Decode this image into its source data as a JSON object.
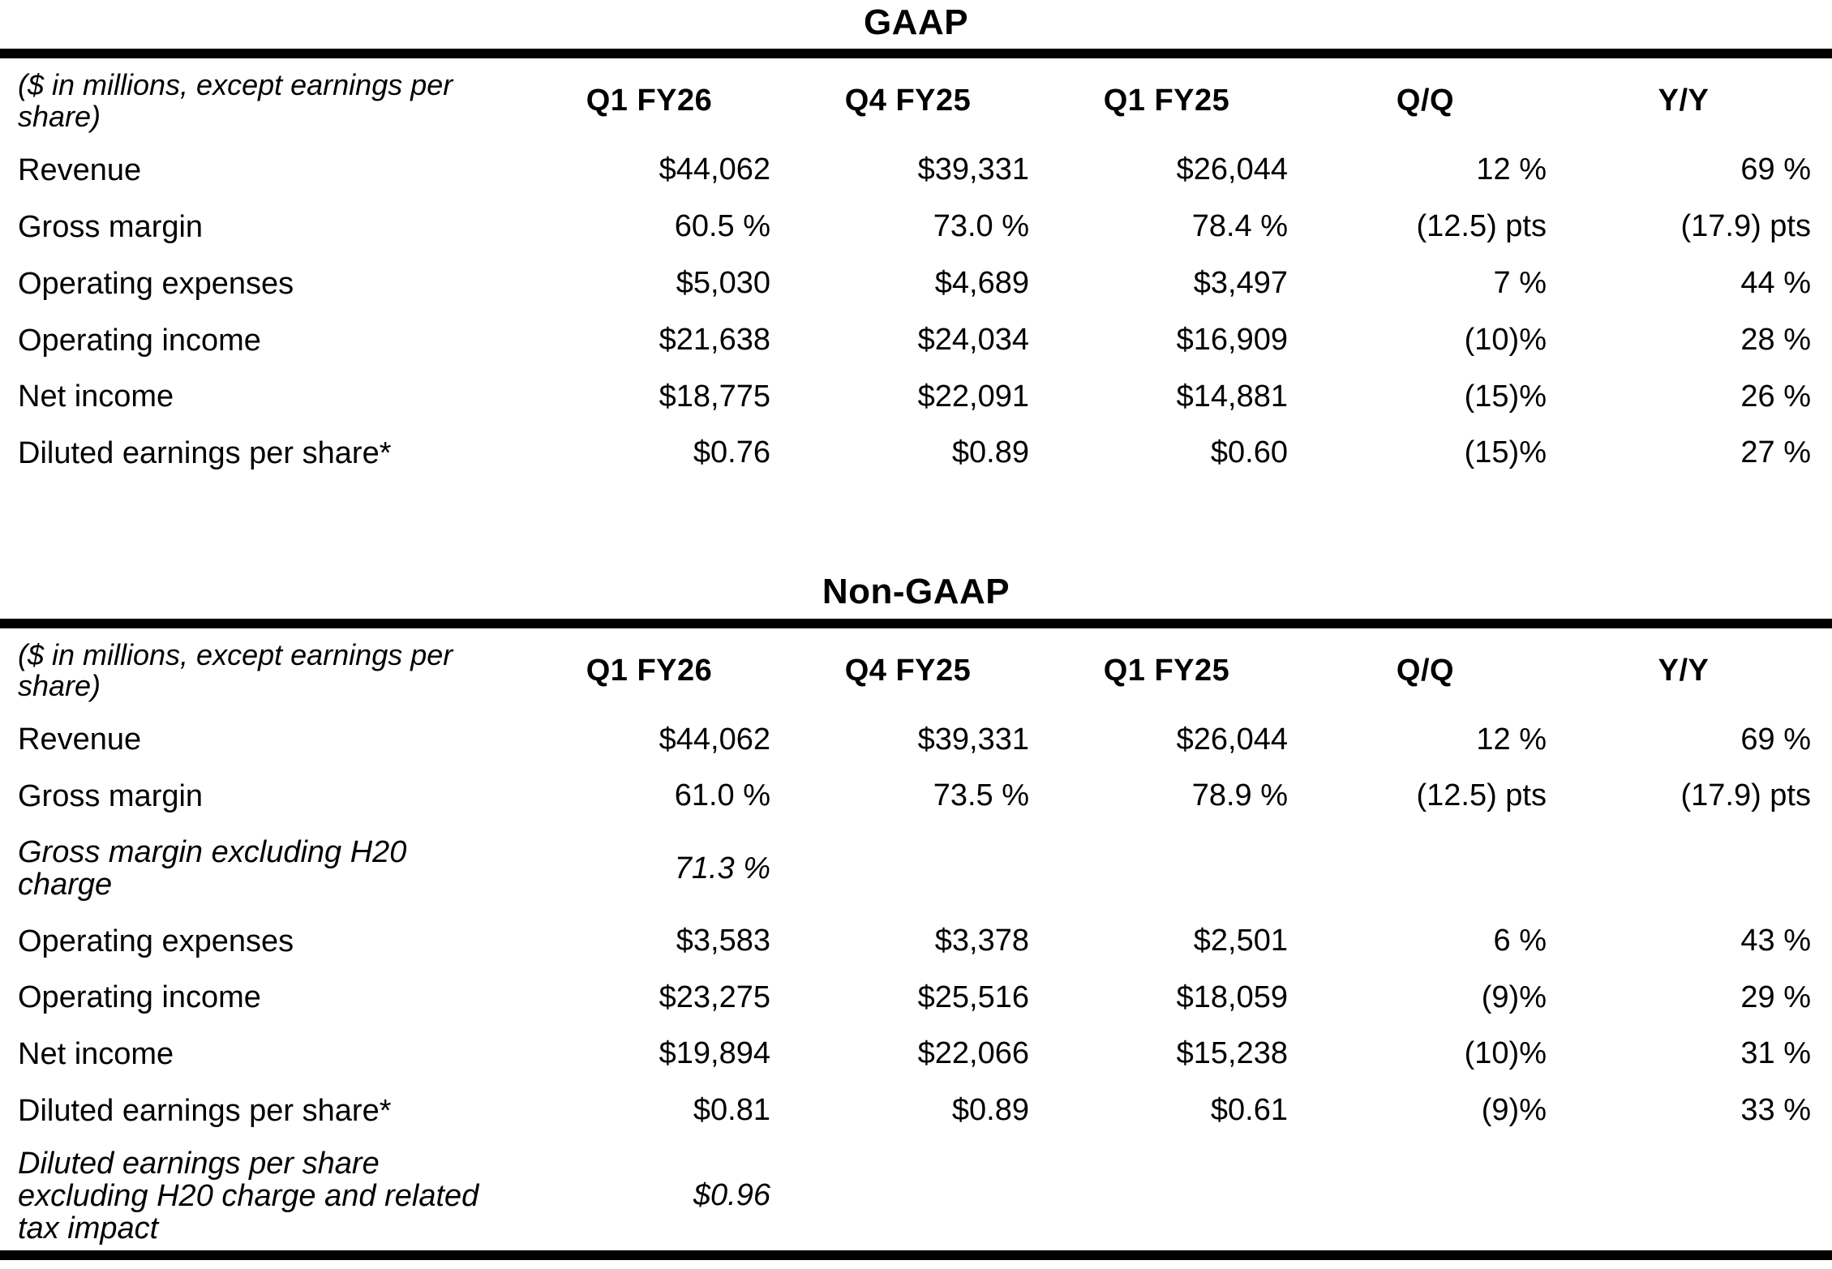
{
  "tables": [
    {
      "title": "GAAP",
      "note": "($ in millions, except earnings per\nshare)",
      "columns": [
        "Q1 FY26",
        "Q4 FY25",
        "Q1 FY25",
        "Q/Q",
        "Y/Y"
      ],
      "rows": [
        {
          "label": "Revenue",
          "italic": false,
          "values": [
            "$44,062",
            "$39,331",
            "$26,044",
            "12 %",
            "69 %"
          ]
        },
        {
          "label": "Gross margin",
          "italic": false,
          "values": [
            "60.5 %",
            "73.0 %",
            "78.4 %",
            "(12.5) pts",
            "(17.9) pts"
          ]
        },
        {
          "label": "Operating expenses",
          "italic": false,
          "values": [
            "$5,030",
            "$4,689",
            "$3,497",
            "7 %",
            "44 %"
          ]
        },
        {
          "label": "Operating income",
          "italic": false,
          "values": [
            "$21,638",
            "$24,034",
            "$16,909",
            "(10)%",
            "28 %"
          ]
        },
        {
          "label": "Net income",
          "italic": false,
          "values": [
            "$18,775",
            "$22,091",
            "$14,881",
            "(15)%",
            "26 %"
          ]
        },
        {
          "label": "Diluted earnings per share*",
          "italic": false,
          "values": [
            "$0.76",
            "$0.89",
            "$0.60",
            "(15)%",
            "27 %"
          ]
        }
      ]
    },
    {
      "title": "Non-GAAP",
      "note": "($ in millions, except earnings per\nshare)",
      "columns": [
        "Q1 FY26",
        "Q4 FY25",
        "Q1 FY25",
        "Q/Q",
        "Y/Y"
      ],
      "rows": [
        {
          "label": "Revenue",
          "italic": false,
          "values": [
            "$44,062",
            "$39,331",
            "$26,044",
            "12 %",
            "69 %"
          ]
        },
        {
          "label": "Gross margin",
          "italic": false,
          "values": [
            "61.0 %",
            "73.5 %",
            "78.9 %",
            "(12.5) pts",
            "(17.9) pts"
          ]
        },
        {
          "label": "Gross margin excluding H20\ncharge",
          "italic": true,
          "values": [
            "71.3 %",
            "",
            "",
            "",
            ""
          ]
        },
        {
          "label": "Operating expenses",
          "italic": false,
          "values": [
            "$3,583",
            "$3,378",
            "$2,501",
            "6 %",
            "43 %"
          ]
        },
        {
          "label": "Operating income",
          "italic": false,
          "values": [
            "$23,275",
            "$25,516",
            "$18,059",
            "(9)%",
            "29 %"
          ]
        },
        {
          "label": "Net income",
          "italic": false,
          "values": [
            "$19,894",
            "$22,066",
            "$15,238",
            "(10)%",
            "31 %"
          ]
        },
        {
          "label": "Diluted earnings per share*",
          "italic": false,
          "values": [
            "$0.81",
            "$0.89",
            "$0.61",
            "(9)%",
            "33 %"
          ]
        },
        {
          "label": "Diluted earnings per share\nexcluding H20 charge and related\ntax impact",
          "italic": true,
          "values": [
            "$0.96",
            "",
            "",
            "",
            ""
          ]
        }
      ]
    }
  ],
  "colors": {
    "text": "#000000",
    "background": "#ffffff",
    "rule": "#000000"
  }
}
